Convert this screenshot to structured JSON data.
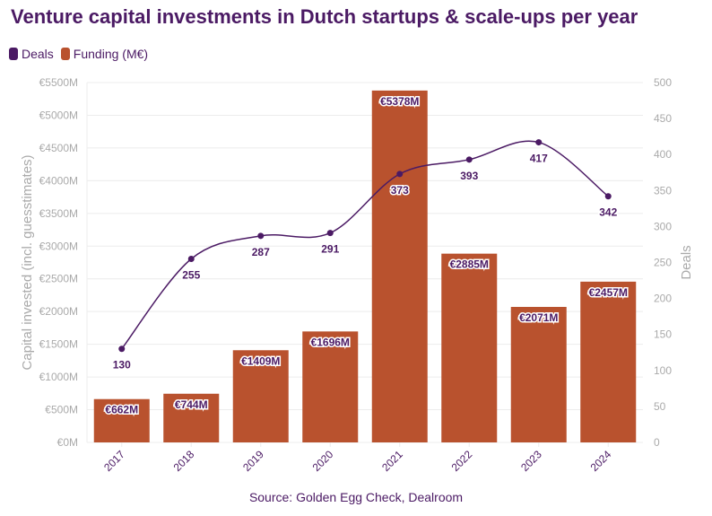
{
  "title": "Venture capital investments in Dutch startups & scale-ups per year",
  "legend": {
    "deals": "Deals",
    "funding": "Funding (M€)"
  },
  "source": "Source: Golden Egg Check, Dealroom",
  "colors": {
    "bar": "#b9522e",
    "line": "#4b1a64",
    "grid": "#ececec",
    "axis": "#aaaaaa"
  },
  "chart_data": {
    "type": "bar",
    "title": "Venture capital investments in Dutch startups & scale-ups per year",
    "categories": [
      "2017",
      "2018",
      "2019",
      "2020",
      "2021",
      "2022",
      "2023",
      "2024"
    ],
    "series": [
      {
        "name": "Funding (M€)",
        "type": "bar",
        "axis": "left",
        "values": [
          662,
          744,
          1409,
          1696,
          5378,
          2885,
          2071,
          2457
        ],
        "labels": [
          "€662M",
          "€744M",
          "€1409M",
          "€1696M",
          "€5378M",
          "€2885M",
          "€2071M",
          "€2457M"
        ]
      },
      {
        "name": "Deals",
        "type": "line",
        "axis": "right",
        "values": [
          130,
          255,
          287,
          291,
          373,
          393,
          417,
          342
        ]
      }
    ],
    "ylabel": "Capital invested (incl. guesstimates)",
    "y2label": "Deals",
    "ylim": [
      0,
      5500
    ],
    "y2lim": [
      0,
      500
    ],
    "yticks": [
      "€0M",
      "€500M",
      "€1000M",
      "€1500M",
      "€2000M",
      "€2500M",
      "€3000M",
      "€3500M",
      "€4000M",
      "€4500M",
      "€5000M",
      "€5500M"
    ],
    "y2ticks": [
      "0",
      "50",
      "100",
      "150",
      "200",
      "250",
      "300",
      "350",
      "400",
      "450",
      "500"
    ],
    "legend_position": "top-left"
  }
}
